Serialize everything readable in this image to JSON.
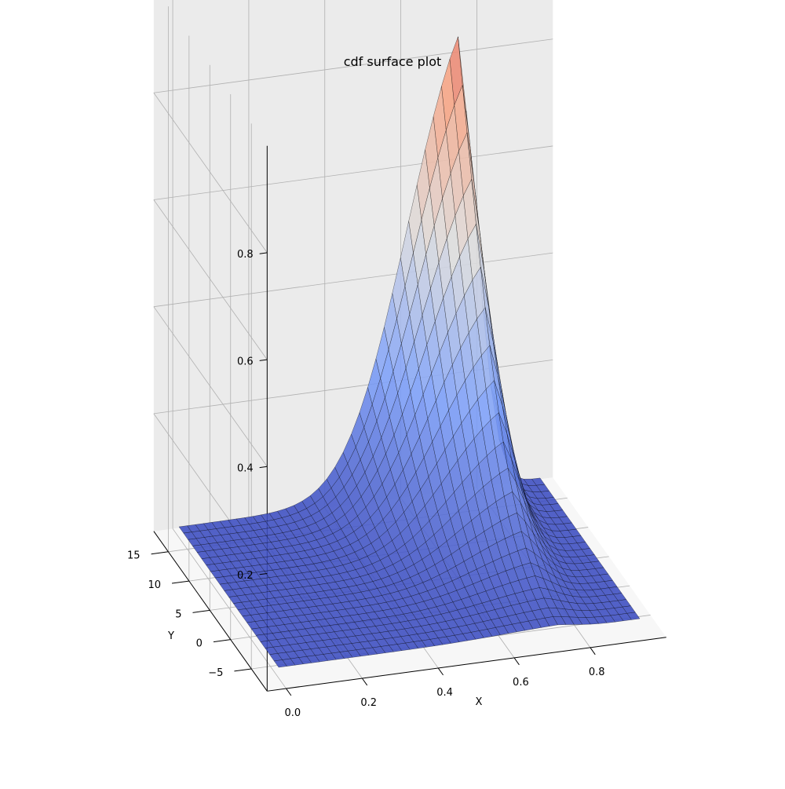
{
  "chart_data": {
    "type": "surface",
    "title": "cdf surface plot",
    "xlabel": "X",
    "ylabel": "Y",
    "zlabel": "",
    "x_ticks": [
      "0.0",
      "0.2",
      "0.4",
      "0.6",
      "0.8"
    ],
    "y_ticks": [
      "−5",
      "0",
      "5",
      "10",
      "15"
    ],
    "z_ticks": [
      "0.2",
      "0.4",
      "0.6",
      "0.8"
    ],
    "xlim": [
      0,
      0.95
    ],
    "ylim": [
      -7,
      17
    ],
    "zlim": [
      0,
      1
    ],
    "grid": true,
    "colormap": "coolwarm",
    "edgecolor": "#000000",
    "pane_colors": {
      "left": "#f2f2f2",
      "back": "#ebebeb",
      "floor": "#f7f7f7",
      "grid": "#b0b0b0"
    },
    "surface": {
      "x": [
        0.0,
        0.95
      ],
      "y": [
        -7,
        17
      ],
      "z_description_values": {
        "x_mean": 0.6,
        "x_sd": 0.13,
        "y_mean": 17,
        "y_sd": 9.4
      }
    }
  }
}
